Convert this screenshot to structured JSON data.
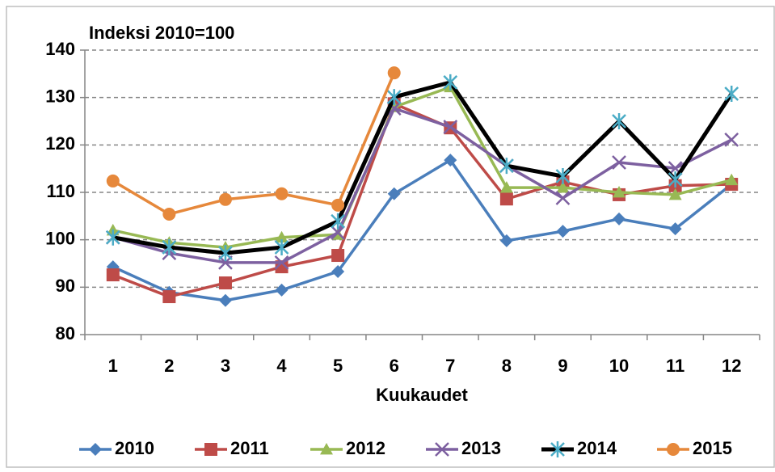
{
  "chart_data": {
    "type": "line",
    "title": "Indeksi 2010=100",
    "x_label": "Kuukaudet",
    "categories": [
      "1",
      "2",
      "3",
      "4",
      "5",
      "6",
      "7",
      "8",
      "9",
      "10",
      "11",
      "12"
    ],
    "ylim": [
      80,
      140
    ],
    "yticks": [
      80,
      90,
      100,
      110,
      120,
      130,
      140
    ],
    "grid": true,
    "legend": "bottom",
    "series": [
      {
        "name": "2010",
        "color": "#4a7ebb",
        "marker": "diamond",
        "values": [
          94.3,
          88.9,
          87.2,
          89.4,
          93.3,
          109.7,
          116.8,
          99.8,
          101.8,
          104.4,
          102.3,
          111.7
        ]
      },
      {
        "name": "2011",
        "color": "#be4b48",
        "marker": "square",
        "values": [
          92.6,
          88.0,
          90.9,
          94.3,
          96.7,
          128.7,
          123.6,
          108.6,
          112.2,
          109.5,
          111.4,
          111.7
        ]
      },
      {
        "name": "2012",
        "color": "#98b954",
        "marker": "triangle",
        "values": [
          102.0,
          99.4,
          98.4,
          100.5,
          101.1,
          128.0,
          132.2,
          111.0,
          111.0,
          110.0,
          109.5,
          112.6
        ]
      },
      {
        "name": "2013",
        "color": "#7d60a0",
        "marker": "x",
        "values": [
          100.5,
          97.2,
          95.2,
          95.2,
          101.5,
          127.7,
          123.8,
          115.6,
          108.8,
          116.3,
          115.1,
          121.1
        ]
      },
      {
        "name": "2014",
        "color": "#000000",
        "marker": "star",
        "marker_color": "#4bacc6",
        "width": 5,
        "values": [
          100.5,
          98.4,
          97.2,
          98.4,
          103.9,
          130.1,
          133.2,
          115.6,
          113.4,
          125.0,
          112.7,
          130.8
        ]
      },
      {
        "name": "2015",
        "color": "#e6883b",
        "marker": "circle",
        "values": [
          112.4,
          105.4,
          108.5,
          109.7,
          107.3,
          135.2,
          null,
          null,
          null,
          null,
          null,
          null
        ]
      }
    ]
  }
}
